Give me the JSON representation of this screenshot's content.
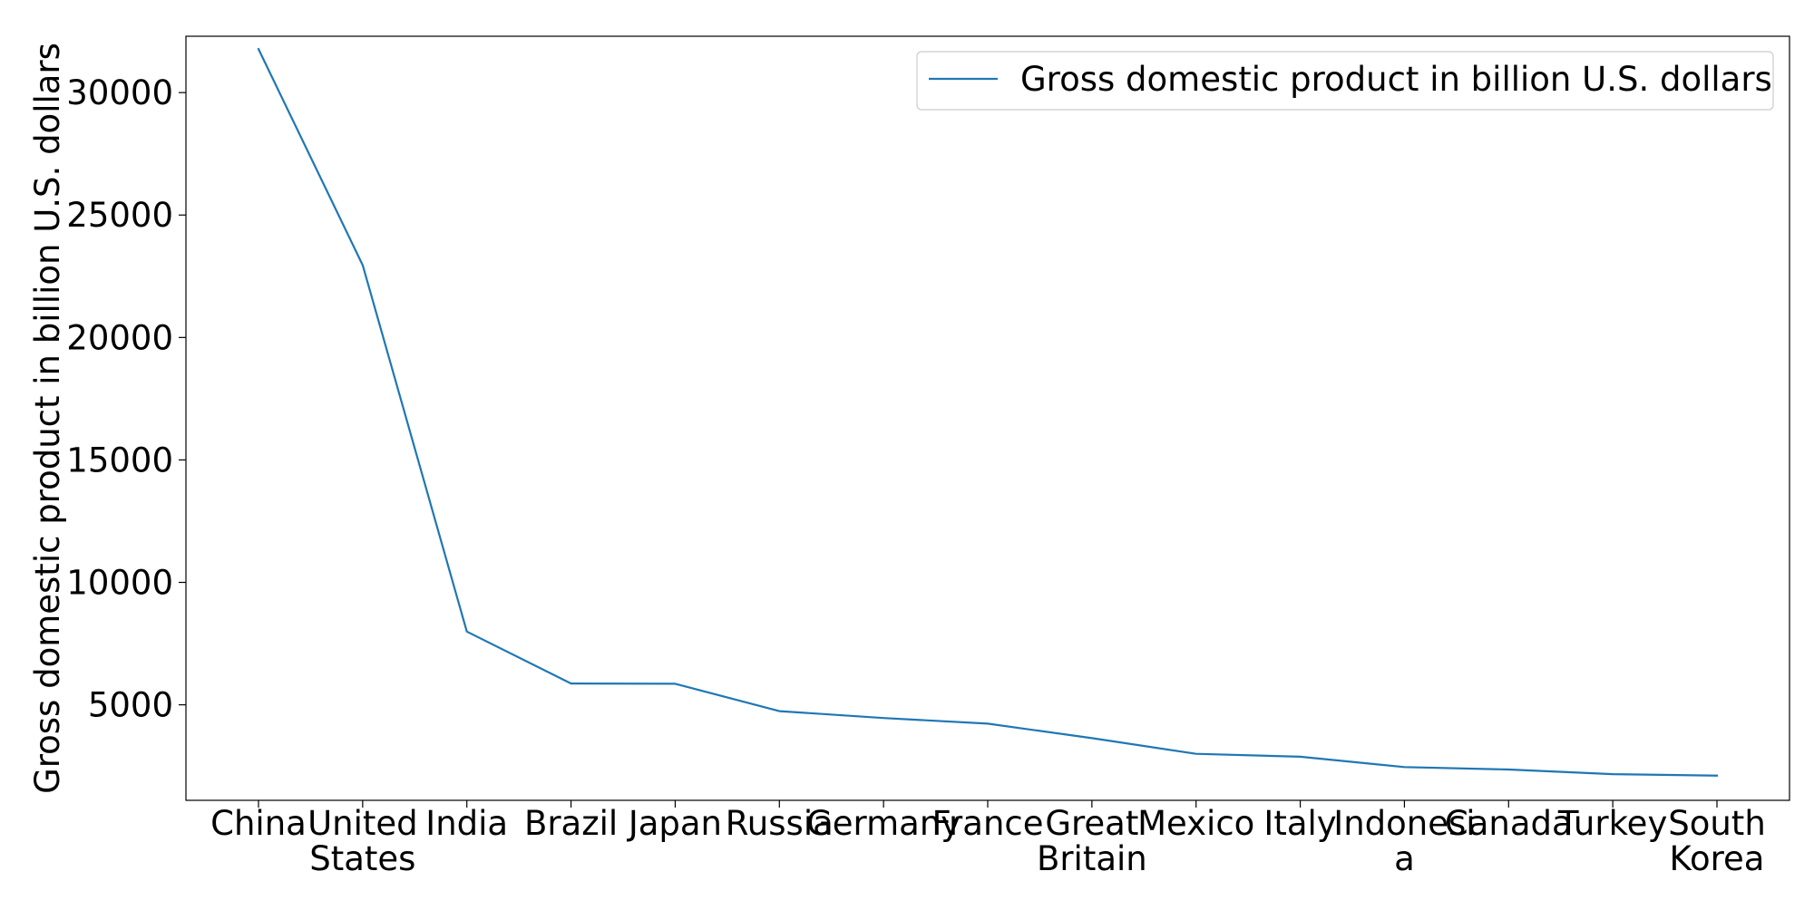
{
  "chart_data": {
    "type": "line",
    "title": "",
    "xlabel": "",
    "ylabel": "Gross domestic product in billion U.S. dollars",
    "categories": [
      "China",
      "United States",
      "India",
      "Brazil",
      "Japan",
      "Russia",
      "Germany",
      "France",
      "Great Britain",
      "Mexico",
      "Italy",
      "Indonesia",
      "Canada",
      "Turkey",
      "South Korea"
    ],
    "category_tick_lines": [
      [
        "China"
      ],
      [
        "United",
        "States"
      ],
      [
        "India"
      ],
      [
        "Brazil"
      ],
      [
        "Japan"
      ],
      [
        "Russia"
      ],
      [
        "Germany"
      ],
      [
        "France"
      ],
      [
        "Great",
        "Britain"
      ],
      [
        "Mexico"
      ],
      [
        "Italy"
      ],
      [
        "Indonesi",
        "a"
      ],
      [
        "Canada"
      ],
      [
        "Turkey"
      ],
      [
        "South",
        "Korea"
      ]
    ],
    "series": [
      {
        "name": "Gross domestic product in billion U.S. dollars",
        "color": "#1f77b4",
        "values": [
          31780,
          22950,
          7990,
          5870,
          5860,
          4740,
          4460,
          4230,
          3640,
          3000,
          2880,
          2460,
          2360,
          2170,
          2110
        ]
      }
    ],
    "ylim": [
      1100,
      32300
    ],
    "yticks": [
      5000,
      10000,
      15000,
      20000,
      25000,
      30000
    ],
    "ytick_labels": [
      "5000",
      "10000",
      "15000",
      "20000",
      "25000",
      "30000"
    ],
    "grid": false,
    "legend_position": "top-right"
  }
}
